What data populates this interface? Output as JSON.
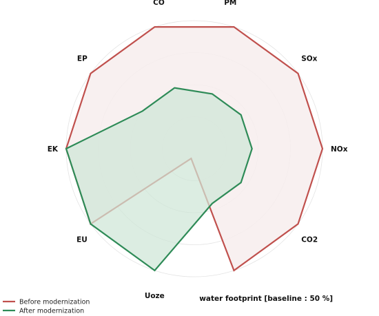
{
  "chart_data": {
    "type": "radar",
    "axes": [
      "PM",
      "SOx",
      "NOx",
      "CO2",
      "water footprint [baseline : 50 %]",
      "Uoze",
      "EU",
      "EK",
      "EP",
      "CO"
    ],
    "series": [
      {
        "name": "Before modernization",
        "color": "#c0504d",
        "fill": "#f7eded",
        "values": [
          100,
          100,
          100,
          100,
          100,
          8,
          100,
          100,
          100,
          100
        ]
      },
      {
        "name": "After modernization",
        "color": "#2e8b57",
        "fill": "#cfe6d7",
        "values": [
          45,
          45,
          45,
          45,
          45,
          100,
          100,
          100,
          50,
          50
        ]
      }
    ],
    "rlim": [
      0,
      100
    ],
    "grid": true,
    "legend_position": "bottom-left"
  }
}
